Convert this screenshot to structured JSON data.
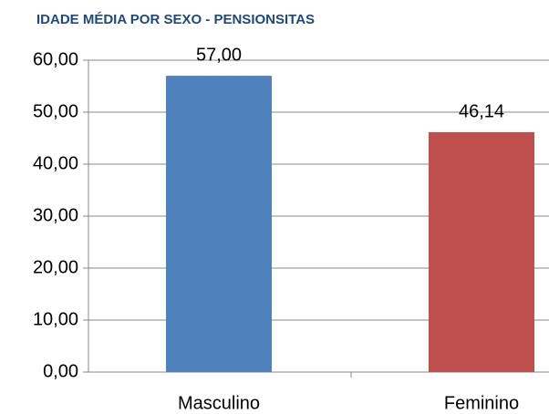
{
  "chart_data": {
    "type": "bar",
    "title": "IDADE MÉDIA POR SEXO - PENSIONSITAS",
    "categories": [
      "Masculino",
      "Feminino"
    ],
    "values": [
      57,
      46.14
    ],
    "value_labels": [
      "57,00",
      "46,14"
    ],
    "colors": [
      "#4f81bd",
      "#c0504d"
    ],
    "ylim": [
      0,
      60
    ],
    "yticks": [
      {
        "value": 0,
        "label": "0,00"
      },
      {
        "value": 10,
        "label": "10,00"
      },
      {
        "value": 20,
        "label": "20,00"
      },
      {
        "value": 30,
        "label": "30,00"
      },
      {
        "value": 40,
        "label": "40,00"
      },
      {
        "value": 50,
        "label": "50,00"
      },
      {
        "value": 60,
        "label": "60,00"
      }
    ],
    "grid": true
  }
}
